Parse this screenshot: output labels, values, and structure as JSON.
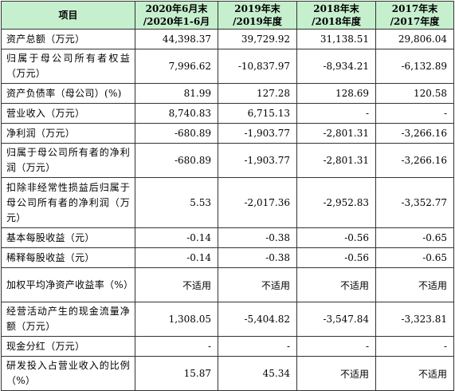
{
  "table": {
    "headers": [
      "项目",
      "2020年6月末\n/2020年1-6月",
      "2019年末\n/2019年度",
      "2018年末\n/2018年度",
      "2017年末\n/2017年度"
    ],
    "rows": [
      {
        "label": "资产总额（万元）",
        "values": [
          "44,398.37",
          "39,729.92",
          "31,138.51",
          "29,806.04"
        ],
        "lines": 1
      },
      {
        "label": "归属于母公司所有者权益（万元）",
        "values": [
          "7,996.62",
          "-10,837.97",
          "-8,934.21",
          "-6,132.89"
        ],
        "lines": 2
      },
      {
        "label": "资产负债率（母公司）(%)",
        "values": [
          "81.99",
          "127.28",
          "128.69",
          "120.58"
        ],
        "lines": 1
      },
      {
        "label": "营业收入（万元）",
        "values": [
          "8,740.83",
          "6,715.13",
          "-",
          "-"
        ],
        "lines": 1
      },
      {
        "label": "净利润（万元）",
        "values": [
          "-680.89",
          "-1,903.77",
          "-2,801.31",
          "-3,266.16"
        ],
        "lines": 1
      },
      {
        "label": "归属于母公司所有者的净利润（万元）",
        "values": [
          "-680.89",
          "-1,903.77",
          "-2,801.31",
          "-3,266.16"
        ],
        "lines": 2
      },
      {
        "label": "扣除非经常性损益后归属于母公司所有者的净利润（万元）",
        "values": [
          "5.53",
          "-2,017.36",
          "-2,952.83",
          "-3,352.77"
        ],
        "lines": 3
      },
      {
        "label": "基本每股收益（元）",
        "values": [
          "-0.14",
          "-0.38",
          "-0.56",
          "-0.65"
        ],
        "lines": 1
      },
      {
        "label": "稀释每股收益（元）",
        "values": [
          "-0.14",
          "-0.38",
          "-0.56",
          "-0.65"
        ],
        "lines": 1
      },
      {
        "label": "加权平均净资产收益率（%）",
        "values": [
          "不适用",
          "不适用",
          "不适用",
          "不适用"
        ],
        "lines": 2
      },
      {
        "label": "经营活动产生的现金流量净额（万元）",
        "values": [
          "1,308.05",
          "-5,404.82",
          "-3,547.84",
          "-3,323.81"
        ],
        "lines": 2
      },
      {
        "label": "现金分红（万元）",
        "values": [
          "-",
          "-",
          "-",
          "-"
        ],
        "lines": 1
      },
      {
        "label": "研发投入占营业收入的比例（%）",
        "values": [
          "15.87",
          "45.34",
          "不适用",
          "不适用"
        ],
        "lines": 2
      }
    ]
  },
  "colors": {
    "header_bg": "#c6efce",
    "border": "#333333"
  }
}
